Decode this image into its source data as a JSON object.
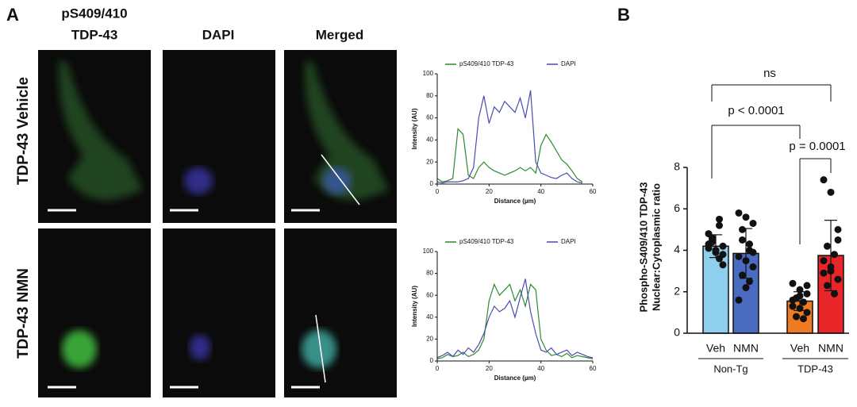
{
  "panel_labels": [
    "A",
    "B"
  ],
  "column_headers": [
    [
      "pS409/410",
      "TDP-43"
    ],
    [
      "DAPI"
    ],
    [
      "Merged"
    ]
  ],
  "row_labels": [
    "TDP-43 Vehicle",
    "TDP-43 NMN"
  ],
  "chart_data": [
    {
      "type": "line",
      "xlabel": "Distance (µm)",
      "ylabel": "Intensity (AU)",
      "xlim": [
        0,
        60
      ],
      "ylim": [
        0,
        100
      ],
      "xticks": [
        0,
        20,
        40,
        60
      ],
      "yticks": [
        0,
        20,
        40,
        60,
        80,
        100
      ],
      "x": [
        0,
        2,
        4,
        6,
        8,
        10,
        12,
        14,
        16,
        18,
        20,
        22,
        24,
        26,
        28,
        30,
        32,
        34,
        36,
        38,
        40,
        42,
        44,
        46,
        48,
        50,
        52,
        54,
        56
      ],
      "series": [
        {
          "name": "pS409/410 TDP-43",
          "color": "#2e8b2e",
          "values": [
            5,
            2,
            3,
            5,
            50,
            45,
            8,
            5,
            15,
            20,
            15,
            12,
            10,
            8,
            10,
            12,
            15,
            12,
            15,
            10,
            35,
            45,
            38,
            30,
            22,
            18,
            12,
            5,
            2
          ]
        },
        {
          "name": "DAPI",
          "color": "#4b4bb0",
          "values": [
            2,
            1,
            2,
            2,
            2,
            3,
            5,
            15,
            60,
            80,
            55,
            70,
            65,
            75,
            70,
            65,
            78,
            60,
            85,
            20,
            10,
            8,
            6,
            5,
            8,
            10,
            5,
            2,
            1
          ]
        }
      ]
    },
    {
      "type": "line",
      "xlabel": "Distance (µm)",
      "ylabel": "Intensity (AU)",
      "xlim": [
        0,
        60
      ],
      "ylim": [
        0,
        100
      ],
      "xticks": [
        0,
        20,
        40,
        60
      ],
      "yticks": [
        0,
        20,
        40,
        60,
        80,
        100
      ],
      "x": [
        0,
        2,
        4,
        6,
        8,
        10,
        12,
        14,
        16,
        18,
        20,
        22,
        24,
        26,
        28,
        30,
        32,
        34,
        36,
        38,
        40,
        42,
        44,
        46,
        48,
        50,
        52,
        54,
        56,
        58,
        60
      ],
      "series": [
        {
          "name": "pS409/410 TDP-43",
          "color": "#2e8b2e",
          "values": [
            2,
            3,
            6,
            4,
            5,
            8,
            4,
            6,
            10,
            20,
            55,
            70,
            60,
            65,
            70,
            55,
            65,
            50,
            70,
            65,
            20,
            10,
            5,
            6,
            4,
            7,
            3,
            5,
            4,
            3,
            2
          ]
        },
        {
          "name": "DAPI",
          "color": "#4b4bb0",
          "values": [
            3,
            5,
            8,
            4,
            10,
            6,
            12,
            8,
            15,
            25,
            40,
            50,
            45,
            48,
            55,
            40,
            58,
            75,
            45,
            25,
            10,
            8,
            12,
            6,
            8,
            10,
            5,
            8,
            6,
            4,
            3
          ]
        }
      ]
    },
    {
      "type": "bar",
      "ylabel": [
        "Phospho-S409/410 TDP-43",
        "Nuclear:Cytoplasmic  ratio"
      ],
      "ylim": [
        0,
        8
      ],
      "yticks": [
        0,
        2,
        4,
        6,
        8
      ],
      "categories": [
        "Veh",
        "NMN",
        "Veh",
        "NMN"
      ],
      "groups": [
        "Non-Tg",
        "TDP-43"
      ],
      "values": [
        4.2,
        3.85,
        1.55,
        3.75
      ],
      "errors": [
        0.55,
        1.2,
        0.45,
        1.7
      ],
      "colors": [
        "#8ecfee",
        "#4a6cc0",
        "#f07a22",
        "#e8262a"
      ],
      "points": [
        [
          4.3,
          4.0,
          3.8,
          4.6,
          5.5,
          4.1,
          3.9,
          4.2,
          4.5,
          3.6,
          4.8,
          4.0,
          3.3,
          4.4,
          5.2
        ],
        [
          5.8,
          5.6,
          5.3,
          4.5,
          4.0,
          3.7,
          3.5,
          3.2,
          2.8,
          2.5,
          1.6,
          2.2,
          3.9,
          5.0,
          4.3
        ],
        [
          2.4,
          2.1,
          1.9,
          1.7,
          1.5,
          1.3,
          1.2,
          1.0,
          0.8,
          0.7,
          1.6,
          1.8,
          2.3
        ],
        [
          7.4,
          6.8,
          5.0,
          4.2,
          3.8,
          3.5,
          3.2,
          2.6,
          2.3,
          1.9,
          2.9,
          3.0,
          4.5
        ]
      ],
      "annotations": [
        "ns",
        "p < 0.0001",
        "p = 0.0001"
      ]
    }
  ]
}
